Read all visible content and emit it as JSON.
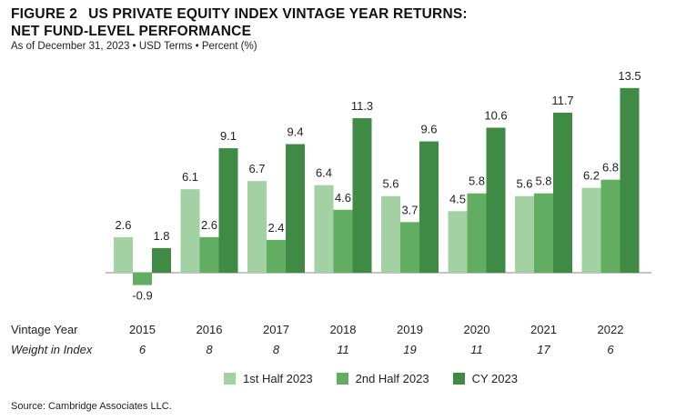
{
  "header": {
    "figure_label": "FIGURE 2",
    "title_line1": "US PRIVATE EQUITY INDEX VINTAGE YEAR RETURNS:",
    "title_line2": "NET FUND-LEVEL PERFORMANCE",
    "subtitle": "As of December 31, 2023 • USD Terms • Percent (%)"
  },
  "chart_data": {
    "type": "bar",
    "categories": [
      "2015",
      "2016",
      "2017",
      "2018",
      "2019",
      "2020",
      "2021",
      "2022"
    ],
    "series": [
      {
        "name": "1st Half 2023",
        "color": "#a3d1a3",
        "values": [
          2.6,
          6.1,
          6.7,
          6.4,
          5.6,
          4.5,
          5.6,
          6.2
        ]
      },
      {
        "name": "2nd Half 2023",
        "color": "#62ad62",
        "values": [
          -0.9,
          2.6,
          2.4,
          4.6,
          3.7,
          5.8,
          5.8,
          6.8
        ]
      },
      {
        "name": "CY 2023",
        "color": "#3f8a45",
        "values": [
          1.8,
          9.1,
          9.4,
          11.3,
          9.6,
          10.6,
          11.7,
          13.5
        ]
      }
    ],
    "row_labels": {
      "vintage": "Vintage Year",
      "weight": "Weight in Index"
    },
    "weights": [
      "6",
      "8",
      "8",
      "11",
      "19",
      "11",
      "17",
      "6"
    ],
    "ylim": [
      -1.5,
      14
    ],
    "legend_position": "bottom-center"
  },
  "footer": {
    "source": "Source: Cambridge Associates LLC."
  }
}
